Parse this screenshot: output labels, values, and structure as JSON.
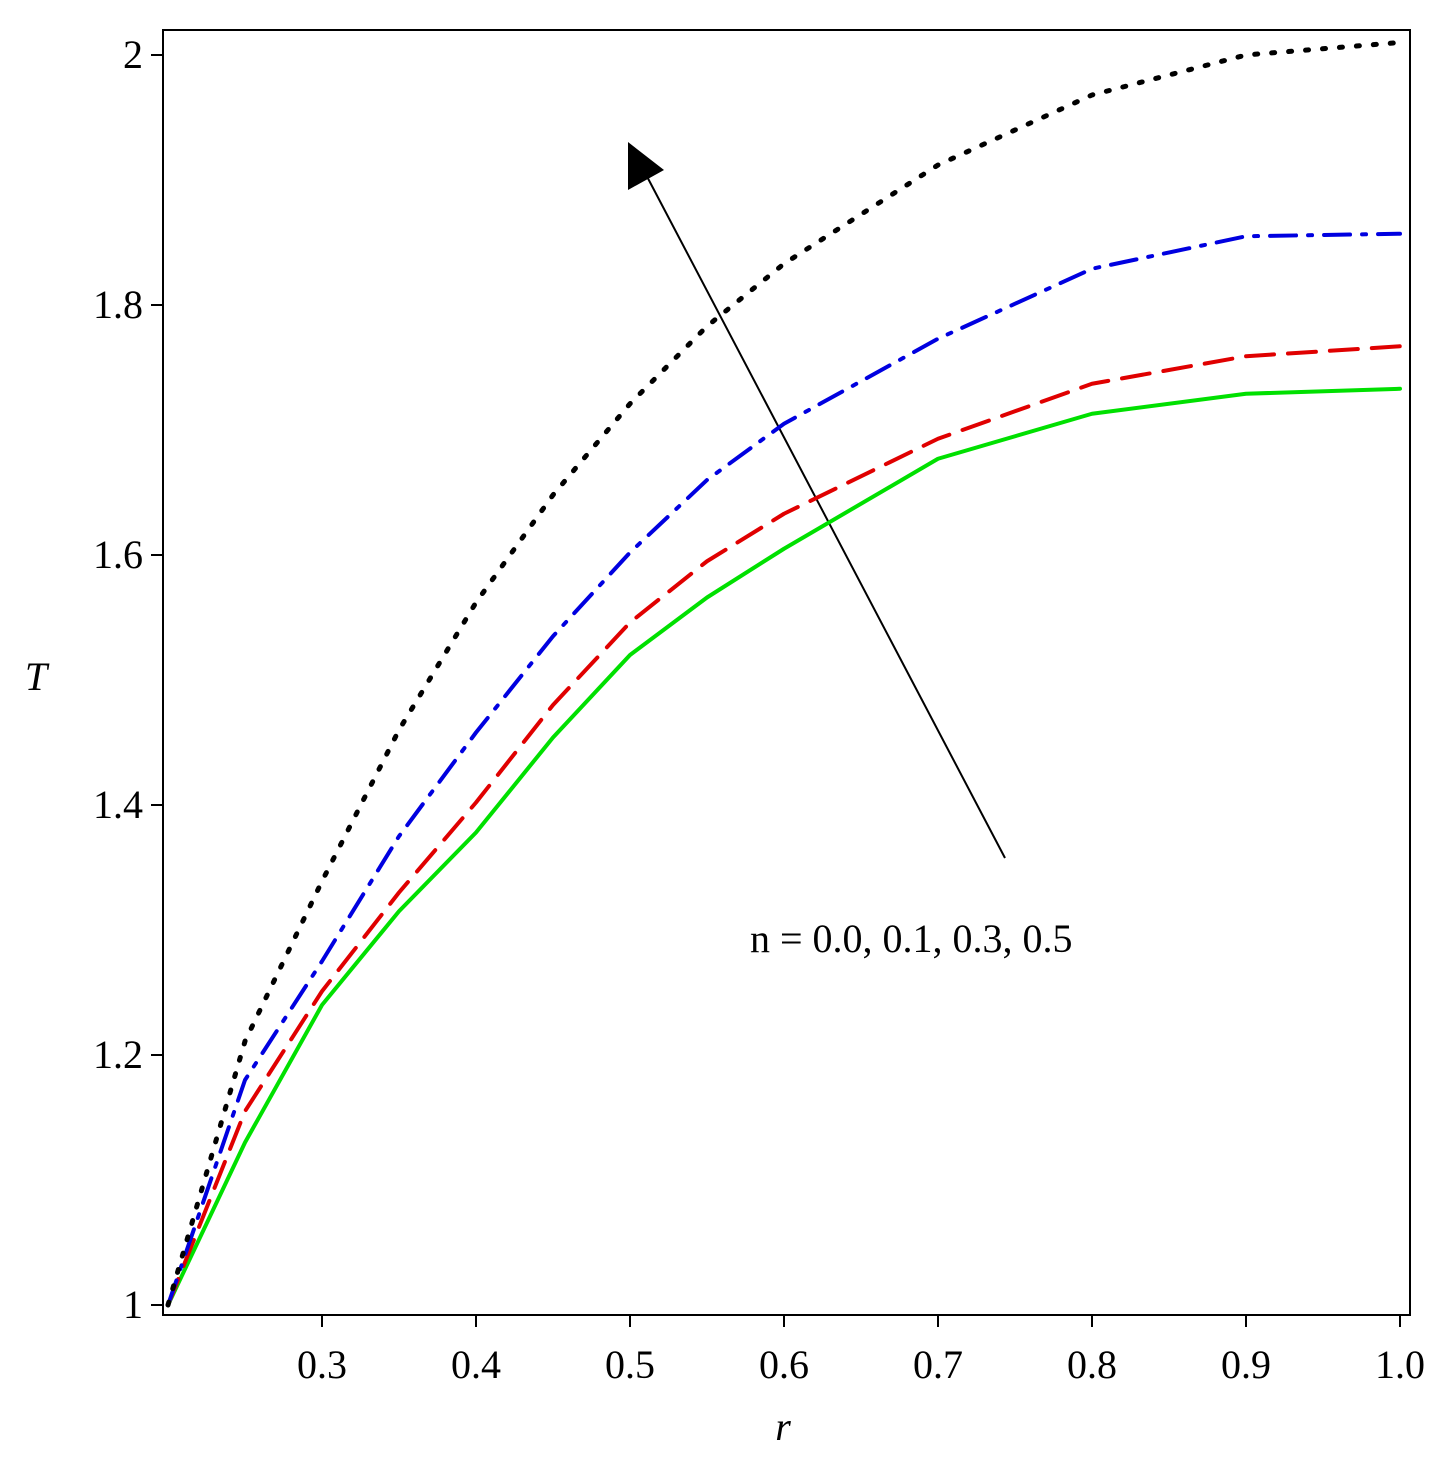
{
  "chart_data": {
    "type": "line",
    "x_label": "r",
    "y_label": "T",
    "annotation": "n = 0.0, 0.1, 0.3, 0.5",
    "x": [
      0.2,
      0.25,
      0.3,
      0.35,
      0.4,
      0.45,
      0.5,
      0.55,
      0.6,
      0.7,
      0.8,
      0.9,
      1.0
    ],
    "series": [
      {
        "color": "#00e000",
        "dash": "solid",
        "values": [
          1.0,
          1.13,
          1.24,
          1.315,
          1.378,
          1.454,
          1.52,
          1.566,
          1.605,
          1.677,
          1.713,
          1.729,
          1.733
        ]
      },
      {
        "color": "#e00000",
        "dash": "dashed",
        "values": [
          1.0,
          1.155,
          1.251,
          1.33,
          1.402,
          1.48,
          1.546,
          1.595,
          1.633,
          1.693,
          1.737,
          1.759,
          1.767
        ]
      },
      {
        "color": "#0000e0",
        "dash": "dashdot",
        "values": [
          1.0,
          1.18,
          1.275,
          1.375,
          1.458,
          1.535,
          1.602,
          1.66,
          1.705,
          1.773,
          1.829,
          1.855,
          1.857
        ]
      },
      {
        "color": "#000000",
        "dash": "dotted",
        "values": [
          1.0,
          1.211,
          1.339,
          1.46,
          1.562,
          1.648,
          1.721,
          1.783,
          1.833,
          1.912,
          1.968,
          2.0,
          2.01
        ]
      }
    ],
    "xlim": [
      0.2,
      1.0
    ],
    "ylim": [
      1,
      2.02
    ],
    "xticks": [
      0.3,
      0.4,
      0.5,
      0.6,
      0.7,
      0.8,
      0.9,
      {
        "value": 1.0,
        "label": "1.0"
      }
    ],
    "yticks": [
      1,
      1.2,
      1.4,
      1.6,
      1.8,
      2
    ],
    "grid": false
  }
}
